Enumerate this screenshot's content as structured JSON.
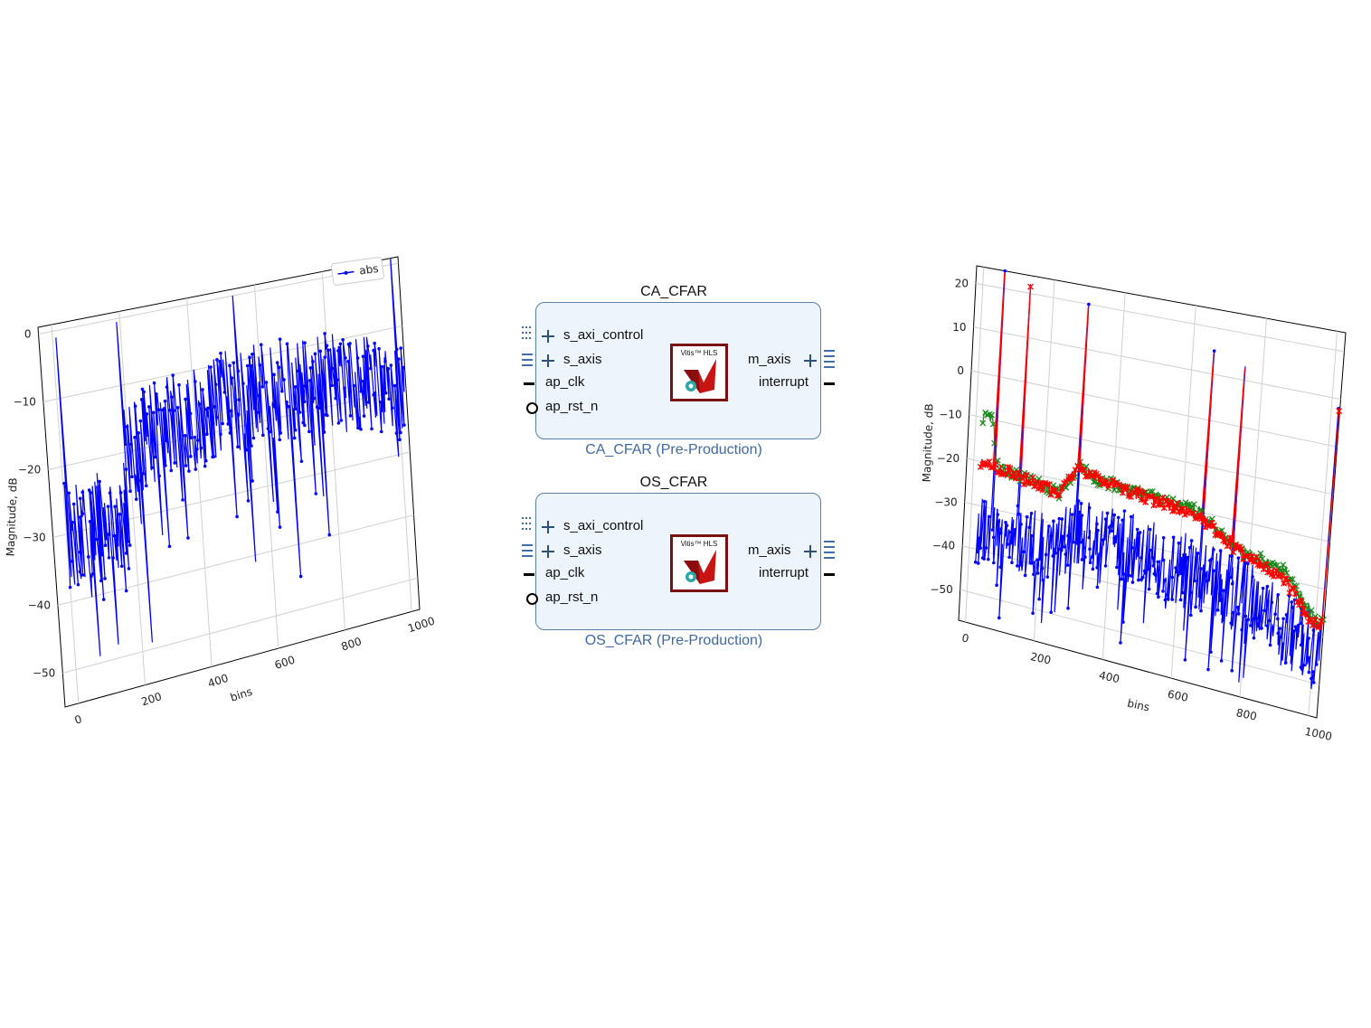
{
  "colors": {
    "series_abs": "#0000ff",
    "series_green": "#1a8a1a",
    "series_red": "#ff0000",
    "block_fill": "#edf4fc",
    "block_border": "#5b7fa8",
    "subtitle": "#3f68a6",
    "logo_border": "#7a1010"
  },
  "blocks": [
    {
      "title": "CA_CFAR",
      "subtitle": "CA_CFAR (Pre-Production)",
      "ports_left": [
        "s_axi_control",
        "s_axis",
        "ap_clk",
        "ap_rst_n"
      ],
      "ports_right": [
        "m_axis",
        "interrupt"
      ],
      "logo_text": "Vitis™ HLS"
    },
    {
      "title": "OS_CFAR",
      "subtitle": "OS_CFAR (Pre-Production)",
      "ports_left": [
        "s_axi_control",
        "s_axis",
        "ap_clk",
        "ap_rst_n"
      ],
      "ports_right": [
        "m_axis",
        "interrupt"
      ],
      "logo_text": "Vitis™ HLS"
    }
  ],
  "chart_data": [
    {
      "type": "line",
      "title": "",
      "xlabel": "bins",
      "ylabel": "Magnitude, dB",
      "xlim": [
        -40,
        1024
      ],
      "ylim": [
        -55,
        1
      ],
      "xticks": [
        0,
        200,
        400,
        600,
        800,
        1000
      ],
      "yticks": [
        0,
        -10,
        -20,
        -30,
        -40,
        -50
      ],
      "grid": true,
      "legend": "top-right",
      "series": [
        {
          "name": "abs",
          "color": "#0000ff",
          "marker": "dot",
          "noise_floor": [
            [
              0,
              -30
            ],
            [
              180,
              -30
            ],
            [
              190,
              -20
            ],
            [
              300,
              -18
            ],
            [
              500,
              -16
            ],
            [
              700,
              -16
            ],
            [
              900,
              -17
            ],
            [
              1023,
              -20
            ]
          ],
          "peaks": [
            [
              10,
              -1
            ],
            [
              190,
              -0.5
            ],
            [
              535,
              0
            ],
            [
              1003,
              1
            ]
          ],
          "dips": [
            [
              75,
              -49
            ],
            [
              130,
              -48
            ],
            [
              230,
              -49
            ],
            [
              550,
              -41
            ],
            [
              680,
              -45
            ]
          ]
        }
      ]
    },
    {
      "type": "line",
      "title": "",
      "xlabel": "bins",
      "ylabel": "Magnitude, dB",
      "xlim": [
        -20,
        1024
      ],
      "ylim": [
        -57,
        24
      ],
      "xticks": [
        0,
        200,
        400,
        600,
        800,
        1000
      ],
      "yticks": [
        20,
        10,
        0,
        -10,
        -20,
        -30,
        -40,
        -50
      ],
      "grid": true,
      "legend": "none",
      "series": [
        {
          "color": "#0000ff",
          "marker": "dot",
          "noise_floor": [
            [
              0,
              -35
            ],
            [
              250,
              -36
            ],
            [
              300,
              -30
            ],
            [
              600,
              -33
            ],
            [
              800,
              -36
            ],
            [
              950,
              -42
            ],
            [
              1023,
              -45
            ]
          ],
          "peaks": [
            [
              60,
              24
            ],
            [
              135,
              22
            ],
            [
              300,
              20
            ],
            [
              660,
              15
            ],
            [
              750,
              13
            ],
            [
              1023,
              8
            ]
          ]
        },
        {
          "color": "#1a8a1a",
          "marker": "x",
          "threshold": [
            [
              20,
              -10
            ],
            [
              50,
              -10
            ],
            [
              60,
              -20
            ],
            [
              250,
              -23
            ],
            [
              300,
              -16
            ],
            [
              350,
              -18
            ],
            [
              650,
              -20
            ],
            [
              760,
              -26
            ],
            [
              900,
              -28
            ],
            [
              1000,
              -37
            ],
            [
              1023,
              -37
            ]
          ]
        },
        {
          "color": "#ff0000",
          "marker": "star",
          "threshold": [
            [
              20,
              -20
            ],
            [
              250,
              -23
            ],
            [
              300,
              -16
            ],
            [
              350,
              -18
            ],
            [
              650,
              -21
            ],
            [
              760,
              -26
            ],
            [
              900,
              -30
            ],
            [
              1000,
              -38
            ],
            [
              1023,
              -38
            ]
          ]
        }
      ]
    }
  ]
}
